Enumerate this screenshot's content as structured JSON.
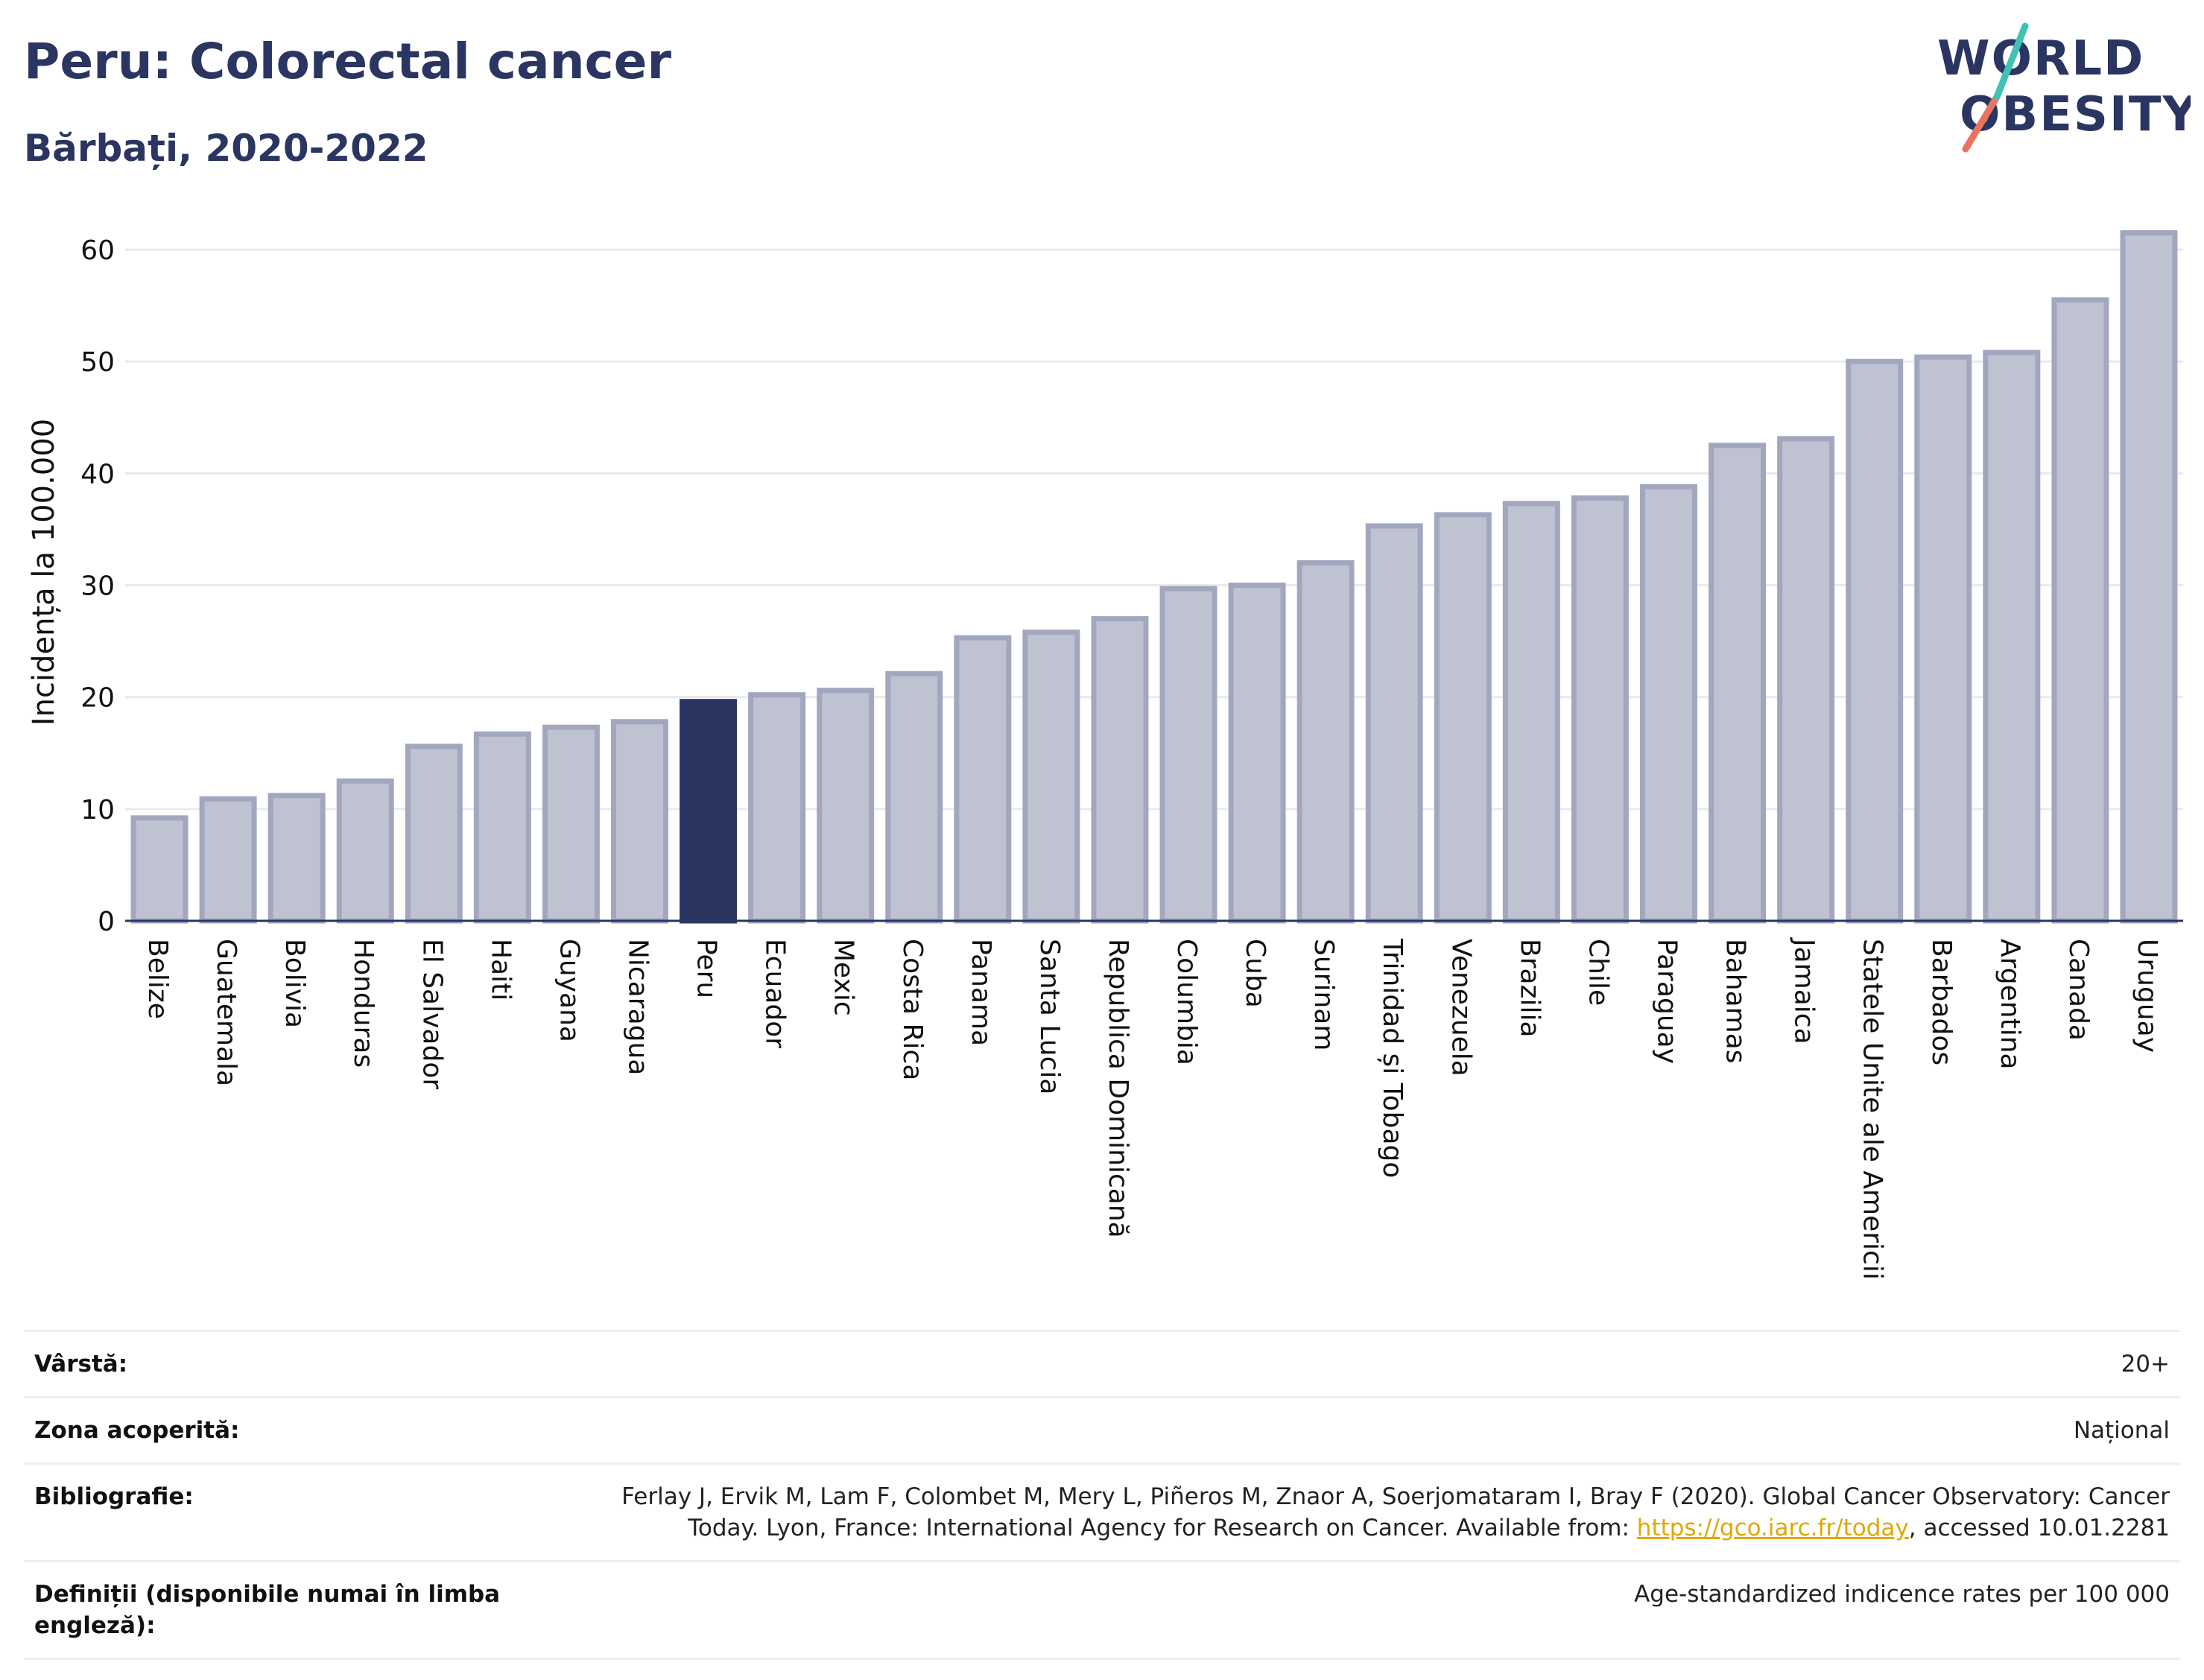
{
  "header": {
    "title": "Peru: Colorectal cancer",
    "subtitle": "Bărbați, 2020-2022"
  },
  "logo": {
    "line1": "WORLD",
    "line2": "OBESITY"
  },
  "colors": {
    "bar": "#bfc2d0",
    "bar_border": "#a2a7bf",
    "highlight": "#2b3561",
    "grid": "#e8eaf0",
    "text": "#111111"
  },
  "chart_data": {
    "type": "bar",
    "ylabel": "Incidența la 100.000",
    "xlabel": "",
    "ylim": [
      0,
      65
    ],
    "yticks": [
      0,
      10,
      20,
      30,
      40,
      50,
      60
    ],
    "grid": true,
    "highlight": "Peru",
    "categories": [
      "Belize",
      "Guatemala",
      "Bolivia",
      "Honduras",
      "El Salvador",
      "Haiti",
      "Guyana",
      "Nicaragua",
      "Peru",
      "Ecuador",
      "Mexic",
      "Costa Rica",
      "Panama",
      "Santa Lucia",
      "Republica Dominicană",
      "Columbia",
      "Cuba",
      "Surinam",
      "Trinidad și Tobago",
      "Venezuela",
      "Brazilia",
      "Chile",
      "Paraguay",
      "Bahamas",
      "Jamaica",
      "Statele Unite ale Americii",
      "Barbados",
      "Argentina",
      "Canada",
      "Uruguay"
    ],
    "values": [
      9.2,
      10.9,
      11.2,
      12.5,
      15.6,
      16.7,
      17.3,
      17.8,
      19.6,
      20.2,
      20.6,
      22.1,
      25.3,
      25.8,
      27.0,
      29.7,
      30.0,
      32.0,
      35.3,
      36.3,
      37.3,
      37.8,
      38.8,
      42.5,
      43.1,
      50.0,
      50.4,
      50.8,
      55.5,
      61.5
    ]
  },
  "meta": {
    "age_label": "Vârstă:",
    "age_value": "20+",
    "area_label": "Zona acoperită:",
    "area_value": "Național",
    "bib_label": "Bibliografie:",
    "bib_text_1": "Ferlay J, Ervik M, Lam F, Colombet M, Mery L, Piñeros M, Znaor A, Soerjomataram I, Bray F (2020). Global Cancer Observatory: Cancer Today. Lyon, France: International Agency for Research on Cancer. Available from: ",
    "bib_link": "https://gco.iarc.fr/today",
    "bib_text_2": ", accessed 10.01.2281",
    "def_label": "Definiții (disponibile numai în limba engleză):",
    "def_value": "Age-standardized indicence rates per 100 000"
  }
}
